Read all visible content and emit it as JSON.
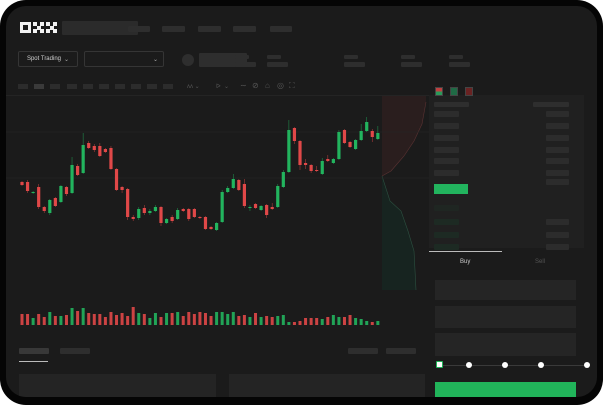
{
  "header": {
    "logo_text": "OKX"
  },
  "market_bar": {
    "mode_dropdown": "Spot Trading"
  },
  "trade_panel": {
    "tabs": [
      {
        "label": "Buy",
        "active": true
      },
      {
        "label": "Sell",
        "active": false
      }
    ],
    "leverage_slider_fraction": 0
  },
  "colors": {
    "up": "#22b45e",
    "down": "#e04848",
    "background": "#1b1b1b",
    "accent": "#21b45a"
  },
  "toolbar_icons": [
    "line-tool-icon",
    "ruler-icon",
    "camera-icon",
    "settings-icon",
    "fullscreen-icon"
  ],
  "chart_data": {
    "type": "candlestick",
    "candles": [
      [
        68,
        69,
        64,
        65
      ],
      [
        68,
        70,
        57,
        59
      ],
      [
        57,
        59,
        56,
        58
      ],
      [
        63,
        66,
        41,
        43
      ],
      [
        43,
        44,
        37,
        39
      ],
      [
        37,
        51,
        35,
        50
      ],
      [
        52,
        53,
        43,
        44
      ],
      [
        48,
        65,
        47,
        64
      ],
      [
        63,
        64,
        54,
        56
      ],
      [
        57,
        93,
        56,
        85
      ],
      [
        84,
        86,
        74,
        75
      ],
      [
        77,
        117,
        76,
        105
      ],
      [
        107,
        109,
        101,
        102
      ],
      [
        104,
        106,
        98,
        100
      ],
      [
        104,
        107,
        93,
        94
      ],
      [
        101,
        102,
        97,
        98
      ],
      [
        102,
        104,
        80,
        81
      ],
      [
        81,
        82,
        59,
        60
      ],
      [
        63,
        64,
        57,
        60
      ],
      [
        61,
        62,
        30,
        33
      ],
      [
        33,
        35,
        29,
        31
      ],
      [
        32,
        43,
        30,
        41
      ],
      [
        42,
        45,
        35,
        37
      ],
      [
        37,
        41,
        35,
        39
      ],
      [
        39,
        45,
        38,
        43
      ],
      [
        43,
        44,
        24,
        27
      ],
      [
        27,
        32,
        26,
        31
      ],
      [
        33,
        35,
        27,
        29
      ],
      [
        31,
        42,
        30,
        40
      ],
      [
        41,
        42,
        38,
        39
      ],
      [
        41,
        42,
        29,
        31
      ],
      [
        41,
        42,
        32,
        33
      ],
      [
        33,
        34,
        31,
        32
      ],
      [
        33,
        34,
        20,
        21
      ],
      [
        23,
        24,
        20,
        21
      ],
      [
        20,
        28,
        19,
        27
      ],
      [
        28,
        60,
        27,
        58
      ],
      [
        58,
        64,
        57,
        62
      ],
      [
        62,
        76,
        61,
        71
      ],
      [
        70,
        71,
        59,
        60
      ],
      [
        66,
        71,
        42,
        44
      ],
      [
        42,
        45,
        39,
        43
      ],
      [
        46,
        47,
        41,
        42
      ],
      [
        40,
        45,
        39,
        44
      ],
      [
        45,
        46,
        32,
        35
      ],
      [
        43,
        47,
        40,
        41
      ],
      [
        43,
        66,
        42,
        64
      ],
      [
        63,
        80,
        62,
        78
      ],
      [
        78,
        130,
        77,
        120
      ],
      [
        122,
        123,
        106,
        109
      ],
      [
        109,
        110,
        80,
        85
      ],
      [
        87,
        91,
        81,
        85
      ],
      [
        85,
        86,
        77,
        79
      ],
      [
        80,
        84,
        78,
        79
      ],
      [
        76,
        92,
        75,
        89
      ],
      [
        91,
        95,
        88,
        89
      ],
      [
        87,
        92,
        86,
        91
      ],
      [
        91,
        120,
        90,
        118
      ],
      [
        120,
        121,
        106,
        107
      ],
      [
        108,
        109,
        102,
        103
      ],
      [
        101,
        111,
        100,
        110
      ],
      [
        110,
        126,
        109,
        119
      ],
      [
        119,
        133,
        118,
        128
      ],
      [
        119,
        121,
        108,
        113
      ],
      [
        111,
        124,
        110,
        117
      ]
    ],
    "volume": [
      11,
      11,
      7,
      11,
      8,
      13,
      9,
      9,
      10,
      17,
      14,
      17,
      12,
      11,
      11,
      8,
      13,
      10,
      12,
      9,
      18,
      12,
      11,
      7,
      12,
      8,
      12,
      12,
      13,
      9,
      13,
      11,
      13,
      12,
      9,
      13,
      13,
      11,
      13,
      9,
      10,
      8,
      12,
      8,
      9,
      8,
      9,
      10,
      3,
      3,
      4,
      7,
      7,
      7,
      6,
      8,
      10,
      8,
      8,
      10,
      7,
      6,
      4,
      3,
      4
    ],
    "guide_levels": [
      118,
      72
    ]
  }
}
